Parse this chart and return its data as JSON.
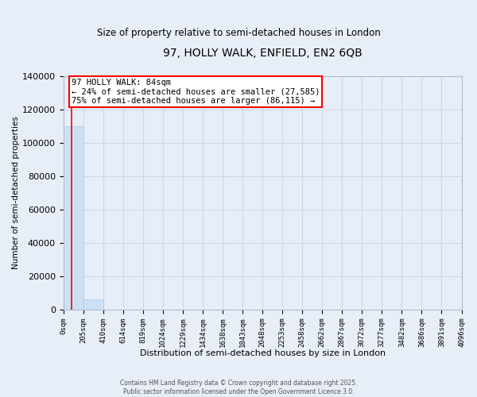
{
  "title": "97, HOLLY WALK, ENFIELD, EN2 6QB",
  "subtitle": "Size of property relative to semi-detached houses in London",
  "xlabel": "Distribution of semi-detached houses by size in London",
  "ylabel": "Number of semi-detached properties",
  "annotation_text_line1": "97 HOLLY WALK: 84sqm",
  "annotation_text_line2": "← 24% of semi-detached houses are smaller (27,585)",
  "annotation_text_line3": "75% of semi-detached houses are larger (86,115) →",
  "footer_text": "Contains HM Land Registry data © Crown copyright and database right 2025.\nPublic sector information licensed under the Open Government Licence 3.0.",
  "bin_edges": [
    0,
    205,
    410,
    614,
    819,
    1024,
    1229,
    1434,
    1638,
    1843,
    2048,
    2253,
    2458,
    2662,
    2867,
    3072,
    3277,
    3482,
    3686,
    3891,
    4096
  ],
  "bin_labels": [
    "0sqm",
    "205sqm",
    "410sqm",
    "614sqm",
    "819sqm",
    "1024sqm",
    "1229sqm",
    "1434sqm",
    "1638sqm",
    "1843sqm",
    "2048sqm",
    "2253sqm",
    "2458sqm",
    "2662sqm",
    "2867sqm",
    "3072sqm",
    "3277sqm",
    "3482sqm",
    "3686sqm",
    "3891sqm",
    "4096sqm"
  ],
  "bar_heights": [
    110000,
    6000,
    0,
    0,
    0,
    0,
    0,
    0,
    0,
    0,
    0,
    0,
    0,
    0,
    0,
    0,
    0,
    0,
    0,
    0
  ],
  "bar_color": "#cce0f5",
  "bar_edgecolor": "#aac8e8",
  "grid_color": "#d0d8e8",
  "background_color": "#e8eef8",
  "red_line_x": 84,
  "ylim": [
    0,
    140000
  ],
  "yticks": [
    0,
    20000,
    40000,
    60000,
    80000,
    100000,
    120000,
    140000
  ],
  "spine_color": "#b0bcd0"
}
